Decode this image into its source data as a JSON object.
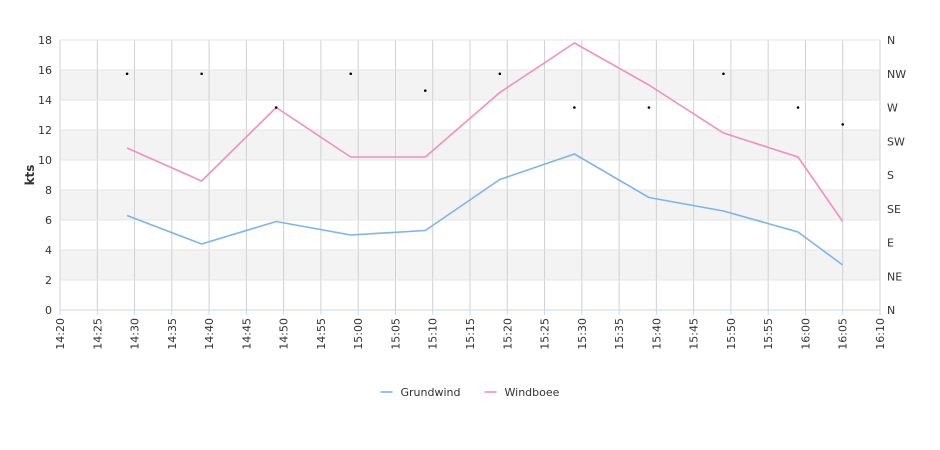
{
  "chart_data": {
    "type": "line",
    "ylabel": "kts",
    "ylim": [
      0,
      18
    ],
    "y_ticks": [
      0,
      2,
      4,
      6,
      8,
      10,
      12,
      14,
      16,
      18
    ],
    "x_ticks": [
      "14:20",
      "14:25",
      "14:30",
      "14:35",
      "14:40",
      "14:45",
      "14:50",
      "14:55",
      "15:00",
      "15:05",
      "15:10",
      "15:15",
      "15:20",
      "15:25",
      "15:30",
      "15:35",
      "15:40",
      "15:45",
      "15:50",
      "15:55",
      "16:00",
      "16:05",
      "16:10"
    ],
    "x_range": [
      "14:20",
      "16:10"
    ],
    "right_axis": {
      "labels": [
        "N",
        "NE",
        "E",
        "SE",
        "S",
        "SW",
        "W",
        "NW",
        "N"
      ],
      "range": [
        0,
        360
      ]
    },
    "x": [
      "14:29",
      "14:39",
      "14:49",
      "14:59",
      "15:09",
      "15:19",
      "15:29",
      "15:39",
      "15:49",
      "15:59",
      "16:05"
    ],
    "series": [
      {
        "name": "Grundwind",
        "color": "#7cb5ec",
        "values": [
          6.3,
          4.4,
          5.9,
          5.0,
          5.3,
          8.7,
          10.4,
          7.5,
          6.6,
          5.2,
          3.0
        ]
      },
      {
        "name": "Windboee",
        "color": "#f28fc0",
        "values": [
          10.8,
          8.6,
          13.5,
          10.2,
          10.2,
          14.5,
          17.8,
          15.0,
          11.8,
          10.2,
          5.9
        ]
      }
    ],
    "direction_points": {
      "x": [
        "14:29",
        "14:39",
        "14:49",
        "14:59",
        "15:09",
        "15:19",
        "15:29",
        "15:39",
        "15:49",
        "15:59",
        "16:05"
      ],
      "degrees": [
        315,
        315,
        270,
        315,
        292.5,
        315,
        270,
        270,
        315,
        270,
        247.5
      ]
    },
    "grid": true,
    "alternate_bands": true,
    "legend": "bottom-center"
  }
}
